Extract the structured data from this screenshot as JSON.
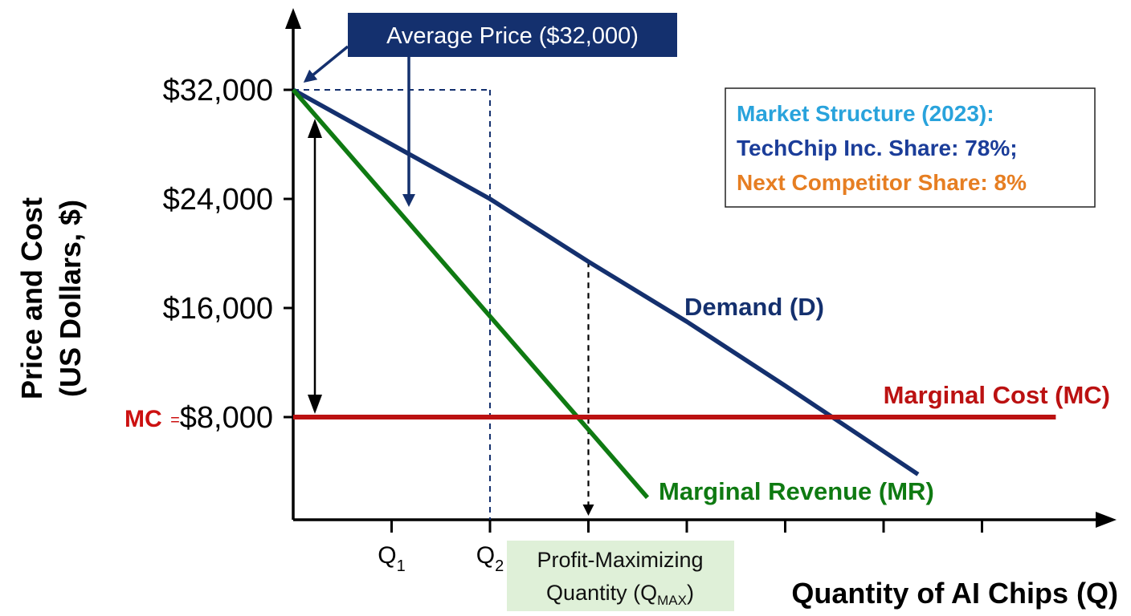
{
  "chart_data": {
    "type": "line",
    "xlabel": "Quantity of AI Chips (Q)",
    "ylabel_line1": "Price and Cost",
    "ylabel_line2": "(US Dollars, $)",
    "ylim": [
      0,
      38000
    ],
    "y_ticks": [
      {
        "value": 32000,
        "label": "$32,000"
      },
      {
        "value": 24000,
        "label": "$24,000"
      },
      {
        "value": 16000,
        "label": "$16,000"
      },
      {
        "value": 8000,
        "label": "$8,000"
      }
    ],
    "mc_prefix": "MC",
    "mc_equals": "=",
    "x_tick_count": 7,
    "x_labels": [
      {
        "tick": 1,
        "main": "Q",
        "sub": "1"
      },
      {
        "tick": 2,
        "main": "Q",
        "sub": "2"
      }
    ],
    "series": [
      {
        "name": "Demand (D)",
        "color": "#14306e",
        "points": [
          [
            0,
            32000
          ],
          [
            2,
            24000
          ],
          [
            3,
            19400
          ],
          [
            4,
            15000
          ],
          [
            5,
            10300
          ],
          [
            6.35,
            3800
          ]
        ]
      },
      {
        "name": "Marginal Revenue (MR)",
        "color": "#0f7a12",
        "points": [
          [
            0,
            32000
          ],
          [
            3.6,
            2100
          ]
        ]
      },
      {
        "name": "Marginal Cost (MC)",
        "color": "#bb1111",
        "points": [
          [
            0,
            8000
          ],
          [
            7.75,
            8000
          ]
        ]
      }
    ],
    "average_price_label": "Average Price ($32,000)",
    "qmax": {
      "tick": 3,
      "line1": "Profit-Maximizing",
      "line2_main": "Quantity (Q",
      "line2_sub": "MAX",
      "line2_end": ")"
    },
    "market_box": {
      "lines": [
        {
          "text": "Market Structure (2023):",
          "color": "#29a3dc"
        },
        {
          "text": "TechChip Inc. Share: 78%;",
          "color": "#1b3d99"
        },
        {
          "text": "Next Competitor Share: 8%",
          "color": "#e67e22"
        }
      ]
    },
    "colors": {
      "axis": "#000000",
      "callout_bg": "#14306e",
      "qmax_bg": "#dff0d8",
      "demand": "#14306e",
      "mr": "#0f7a12",
      "mc": "#bb1111"
    }
  }
}
